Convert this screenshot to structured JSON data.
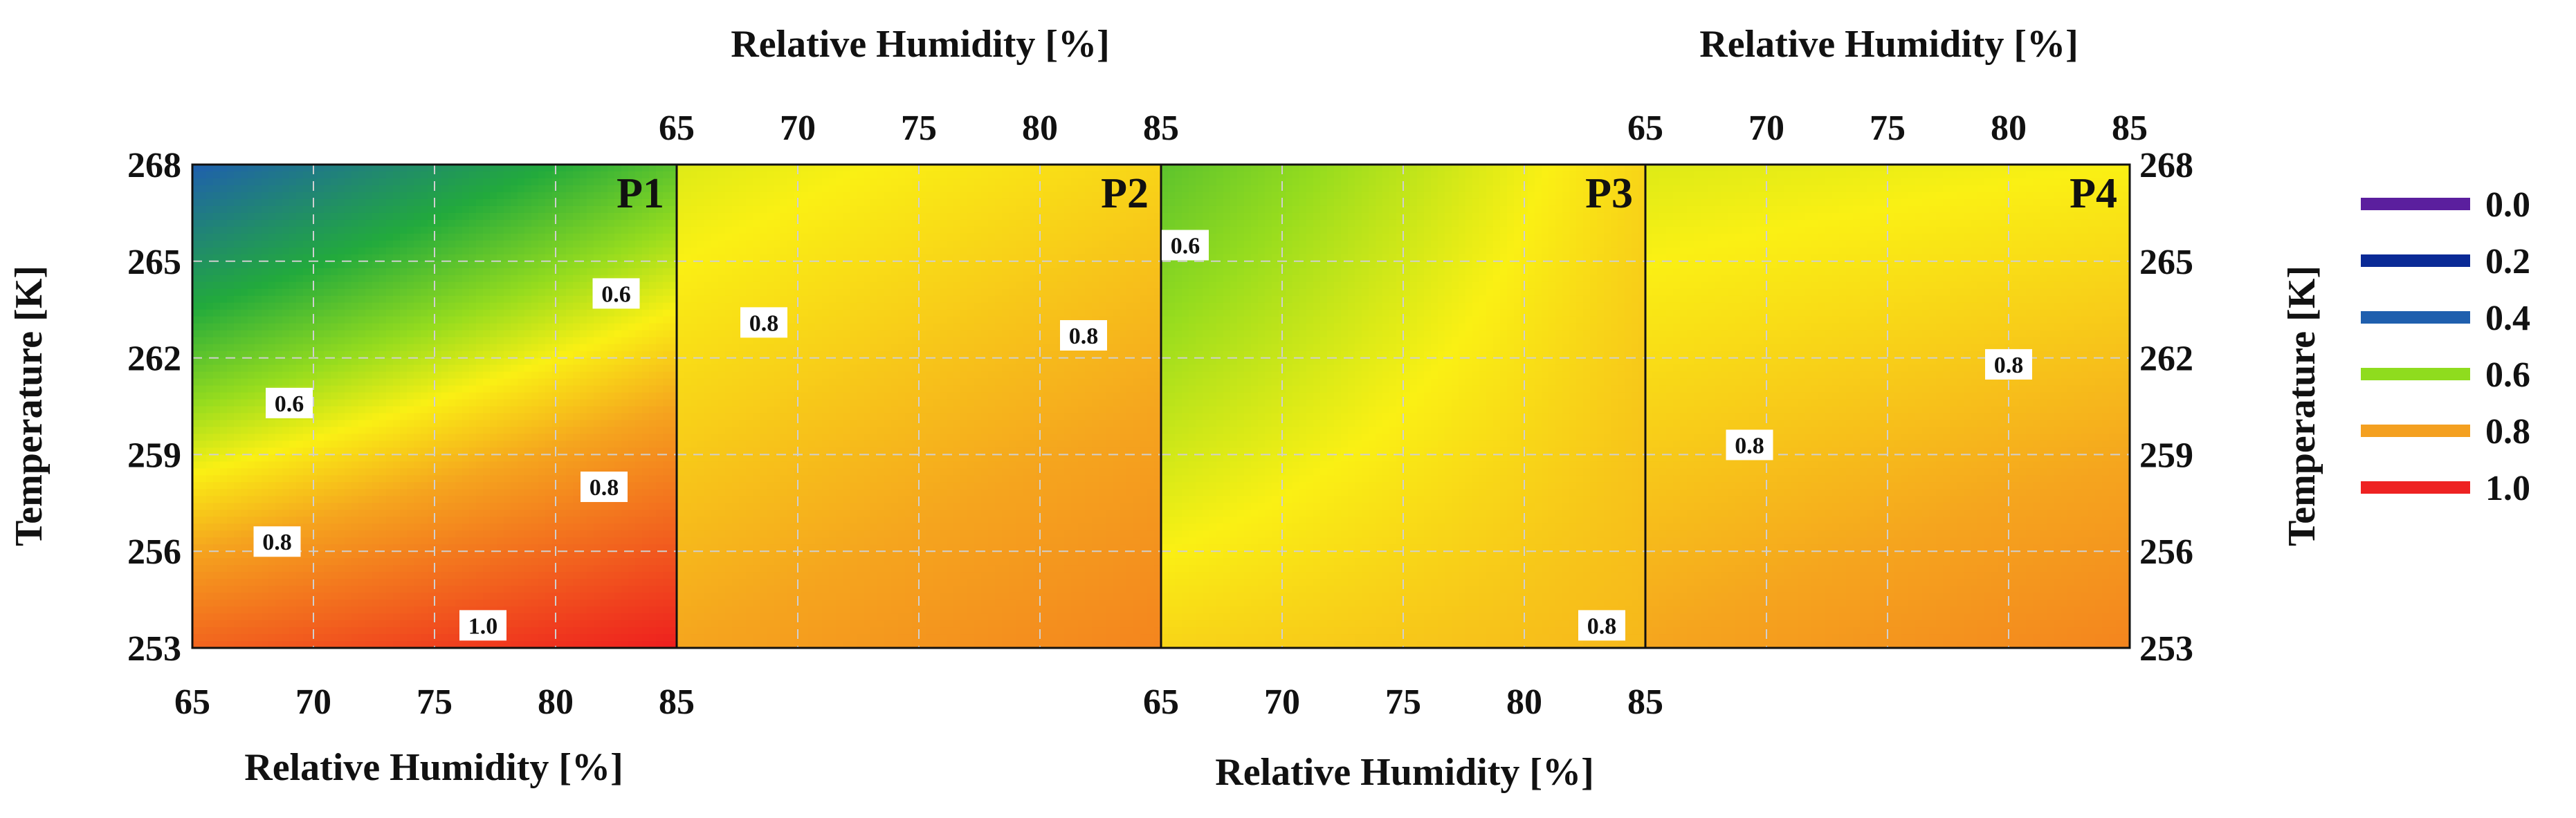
{
  "chart_data": {
    "type": "heatmap",
    "x_axis": {
      "label_top_left": "Relative Humidity [%]",
      "label_top_right": "Relative Humidity [%]",
      "label_bottom_left": "Relative Humidity [%]",
      "label_bottom_right": "Relative Humidity [%]",
      "range": [
        65,
        85
      ],
      "ticks": [
        "65",
        "70",
        "75",
        "80",
        "85"
      ]
    },
    "y_axis": {
      "label_left": "Temperature [K]",
      "label_right": "Temperature [K]",
      "range": [
        253,
        268
      ],
      "ticks": [
        "253",
        "256",
        "259",
        "262",
        "265",
        "268"
      ]
    },
    "grid": true,
    "legend": {
      "placement": "right",
      "entries": [
        {
          "label": "0.0",
          "color": "#5b1f9e"
        },
        {
          "label": "0.2",
          "color": "#0a2a96"
        },
        {
          "label": "0.4",
          "color": "#1f5fae"
        },
        {
          "label": "0.6",
          "color": "#8fdc1e"
        },
        {
          "label": "0.8",
          "color": "#f4a020"
        },
        {
          "label": "1.0",
          "color": "#ee2222"
        }
      ]
    },
    "panels": [
      {
        "name": "P1",
        "corner_values": {
          "top_left": 0.4,
          "top_right": 0.6,
          "bottom_left": 0.9,
          "bottom_right": 1.0
        },
        "contour_labels": [
          {
            "text": "0.6",
            "rh": 69.0,
            "t": 260.6
          },
          {
            "text": "0.6",
            "rh": 82.5,
            "t": 264.0
          },
          {
            "text": "0.8",
            "rh": 68.5,
            "t": 256.3
          },
          {
            "text": "0.8",
            "rh": 82.0,
            "t": 258.0
          },
          {
            "text": "1.0",
            "rh": 77.0,
            "t": 253.7
          }
        ]
      },
      {
        "name": "P2",
        "corner_values": {
          "top_left": 0.7,
          "top_right": 0.75,
          "bottom_left": 0.8,
          "bottom_right": 0.85
        },
        "contour_labels": [
          {
            "text": "0.8",
            "rh": 68.6,
            "t": 263.1
          },
          {
            "text": "0.8",
            "rh": 81.8,
            "t": 262.7
          }
        ]
      },
      {
        "name": "P3",
        "corner_values": {
          "top_left": 0.6,
          "top_right": 0.75,
          "bottom_left": 0.75,
          "bottom_right": 0.78
        },
        "contour_labels": [
          {
            "text": "0.6",
            "rh": 66.0,
            "t": 265.5
          },
          {
            "text": "0.8",
            "rh": 83.2,
            "t": 253.7
          }
        ]
      },
      {
        "name": "P4",
        "corner_values": {
          "top_left": 0.7,
          "top_right": 0.72,
          "bottom_left": 0.8,
          "bottom_right": 0.85
        },
        "contour_labels": [
          {
            "text": "0.8",
            "rh": 69.3,
            "t": 259.3
          },
          {
            "text": "0.8",
            "rh": 80.0,
            "t": 261.8
          }
        ]
      }
    ]
  }
}
